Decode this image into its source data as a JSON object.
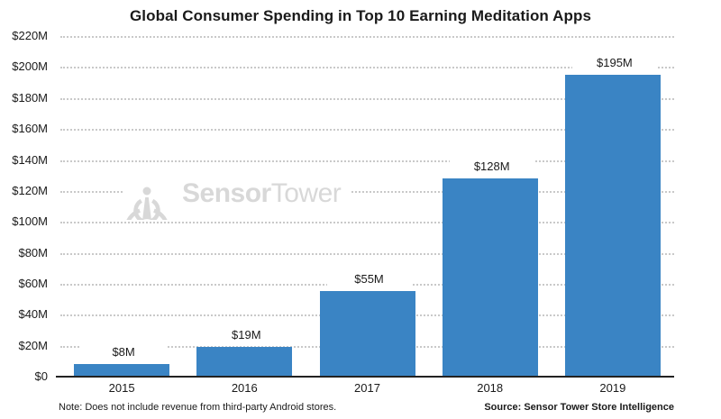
{
  "title": "Global Consumer Spending in Top 10 Earning Meditation Apps",
  "chart_data": {
    "type": "bar",
    "title": "Global Consumer Spending in Top 10 Earning Meditation Apps",
    "categories": [
      "2015",
      "2016",
      "2017",
      "2018",
      "2019"
    ],
    "values": [
      8,
      19,
      55,
      128,
      195
    ],
    "value_labels": [
      "$8M",
      "$19M",
      "$55M",
      "$128M",
      "$195M"
    ],
    "unit": "USD millions",
    "ylim": [
      0,
      220
    ],
    "ytick_step": 20,
    "y_tick_labels": [
      "$220M",
      "$200M",
      "$180M",
      "$160M",
      "$140M",
      "$120M",
      "$100M",
      "$80M",
      "$60M",
      "$40M",
      "$20M",
      "$0"
    ],
    "xlabel": "",
    "ylabel": "",
    "grid": "horizontal-dotted",
    "legend": "none",
    "bar_color": "#3A84C4"
  },
  "watermark": {
    "logo_icon": "sensor-tower-logo",
    "brand_bold": "Sensor",
    "brand_light": "Tower"
  },
  "footer": {
    "note": "Note: Does not include revenue from third-party Android stores.",
    "source": "Source: Sensor Tower Store Intelligence"
  },
  "colors": {
    "bar": "#3A84C4",
    "grid": "#c9c9c9",
    "axis_line": "#222222",
    "text": "#1a1a1a",
    "watermark": "#d8d8d8",
    "background": "#ffffff"
  }
}
